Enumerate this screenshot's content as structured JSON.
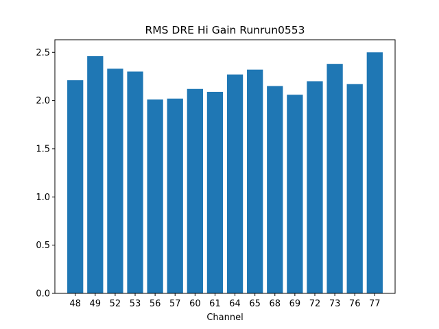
{
  "chart_data": {
    "type": "bar",
    "title": "RMS DRE Hi Gain Runrun0553",
    "xlabel": "Channel",
    "ylabel": "",
    "categories": [
      "48",
      "49",
      "52",
      "53",
      "56",
      "57",
      "60",
      "61",
      "64",
      "65",
      "68",
      "69",
      "72",
      "73",
      "76",
      "77"
    ],
    "values": [
      2.21,
      2.46,
      2.33,
      2.3,
      2.01,
      2.02,
      2.12,
      2.09,
      2.27,
      2.32,
      2.15,
      2.06,
      2.2,
      2.38,
      2.17,
      2.5
    ],
    "ylim": [
      0,
      2.63
    ],
    "yticks": [
      "0.0",
      "0.5",
      "1.0",
      "1.5",
      "2.0",
      "2.5"
    ],
    "grid": false,
    "bar_color": "#1f77b4"
  }
}
